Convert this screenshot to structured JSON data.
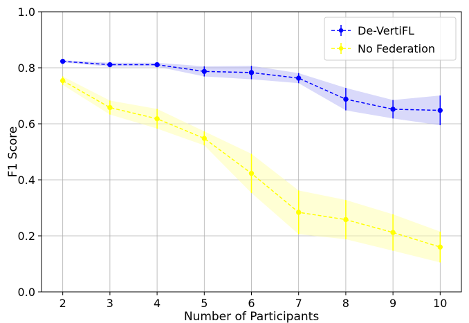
{
  "chart_data": {
    "type": "line",
    "xlabel": "Number of Participants",
    "ylabel": "F1 Score",
    "x": [
      2,
      3,
      4,
      5,
      6,
      7,
      8,
      9,
      10
    ],
    "xlim": [
      1.55,
      10.45
    ],
    "ylim": [
      0.0,
      1.0
    ],
    "xticks": [
      "2",
      "3",
      "4",
      "5",
      "6",
      "7",
      "8",
      "9",
      "10"
    ],
    "yticks": [
      "0.0",
      "0.2",
      "0.4",
      "0.6",
      "0.8",
      "1.0"
    ],
    "grid": true,
    "legend_position": "top-right",
    "series": [
      {
        "name": "De-VertiFL",
        "color": "#0000ff",
        "band_color": "#b3b3f5",
        "values": [
          0.823,
          0.811,
          0.811,
          0.787,
          0.783,
          0.763,
          0.688,
          0.652,
          0.648
        ],
        "errors": [
          0.004,
          0.007,
          0.007,
          0.018,
          0.024,
          0.018,
          0.04,
          0.033,
          0.053
        ]
      },
      {
        "name": "No Federation",
        "color": "#ffff00",
        "band_color": "#ffffaa",
        "values": [
          0.754,
          0.658,
          0.618,
          0.548,
          0.423,
          0.284,
          0.258,
          0.212,
          0.16
        ],
        "errors": [
          0.015,
          0.025,
          0.035,
          0.025,
          0.07,
          0.078,
          0.07,
          0.065,
          0.055
        ]
      }
    ]
  }
}
